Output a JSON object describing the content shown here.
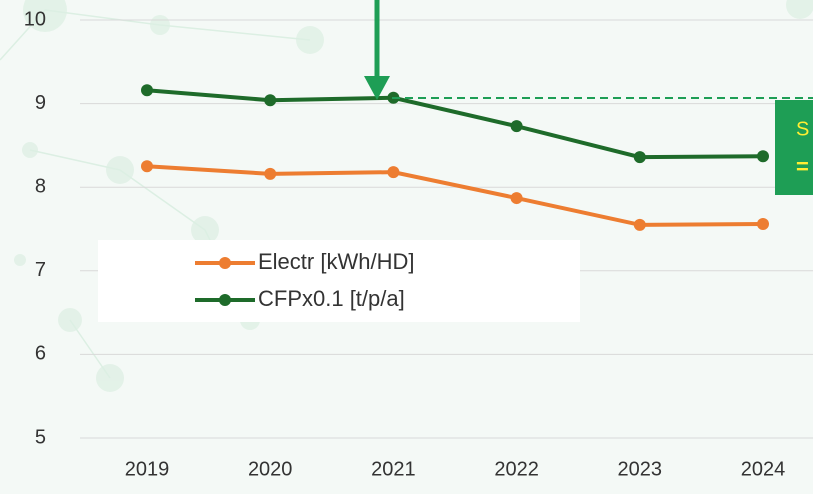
{
  "chart_data": {
    "type": "line",
    "categories": [
      "2019",
      "2020",
      "2021",
      "2022",
      "2023",
      "2024"
    ],
    "series": [
      {
        "name": "Electr [kWh/HD]",
        "color": "#ed7d31",
        "values": [
          8.25,
          8.16,
          8.18,
          7.87,
          7.55,
          7.56
        ]
      },
      {
        "name": "CFPx0.1 [t/p/a]",
        "color": "#1e6b2a",
        "values": [
          9.16,
          9.04,
          9.07,
          8.73,
          8.36,
          8.37
        ]
      }
    ],
    "ylim": [
      5,
      10
    ],
    "yticks": [
      5,
      6,
      7,
      8,
      9,
      10
    ],
    "grid": true,
    "annotations": [
      "S",
      "="
    ]
  }
}
